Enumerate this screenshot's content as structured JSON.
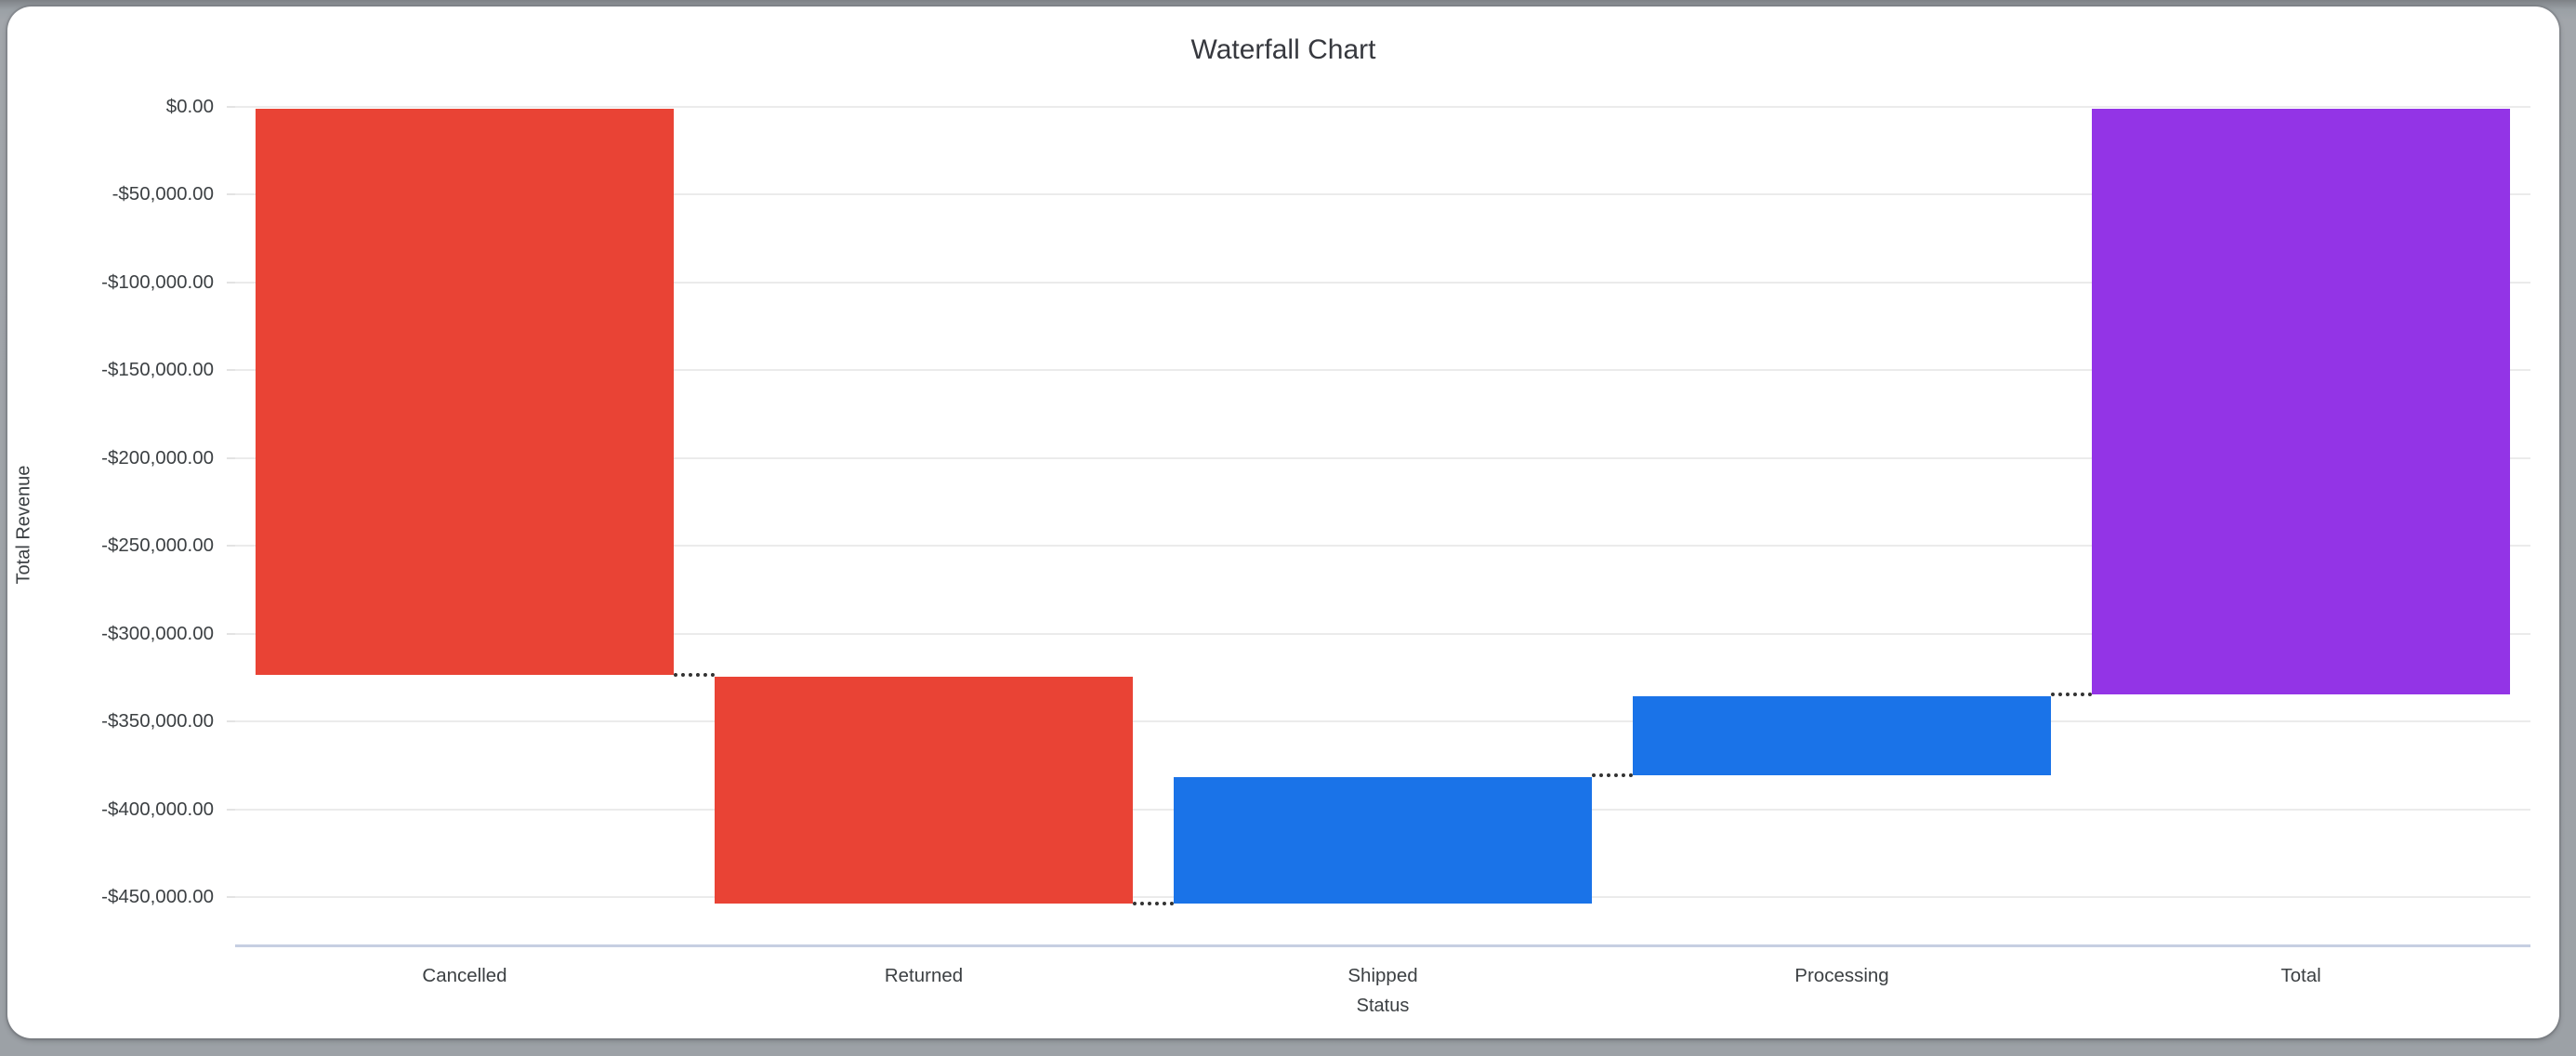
{
  "window": {
    "frame_color": "#9ca1a6",
    "card_background": "#ffffff"
  },
  "chart_data": {
    "type": "bar",
    "subtype": "waterfall",
    "title": "Waterfall Chart",
    "xlabel": "Status",
    "ylabel": "Total Revenue",
    "categories": [
      "Cancelled",
      "Returned",
      "Shipped",
      "Processing",
      "Total"
    ],
    "bars": [
      {
        "label": "Cancelled",
        "kind": "decrease",
        "start": 0,
        "end": -323400,
        "delta": -323400
      },
      {
        "label": "Returned",
        "kind": "decrease",
        "start": -323400,
        "end": -453600,
        "delta": -130200
      },
      {
        "label": "Shipped",
        "kind": "increase",
        "start": -453600,
        "end": -380850,
        "delta": 72750
      },
      {
        "label": "Processing",
        "kind": "increase",
        "start": -380850,
        "end": -334500,
        "delta": 46350
      },
      {
        "label": "Total",
        "kind": "total",
        "start": 0,
        "end": -334500,
        "delta": -334500
      }
    ],
    "connectors": "dotted lines linking each bar end to the next bar",
    "ylim": [
      -477000,
      0
    ],
    "yticks": [
      {
        "value": 0,
        "label": "$0.00"
      },
      {
        "value": -50000,
        "label": "-$50,000.00"
      },
      {
        "value": -100000,
        "label": "-$100,000.00"
      },
      {
        "value": -150000,
        "label": "-$150,000.00"
      },
      {
        "value": -200000,
        "label": "-$200,000.00"
      },
      {
        "value": -250000,
        "label": "-$250,000.00"
      },
      {
        "value": -300000,
        "label": "-$300,000.00"
      },
      {
        "value": -350000,
        "label": "-$350,000.00"
      },
      {
        "value": -400000,
        "label": "-$400,000.00"
      },
      {
        "value": -450000,
        "label": "-$450,000.00"
      }
    ],
    "palette": {
      "decrease": "#e94335",
      "increase": "#1a73e8",
      "total": "#9334e6",
      "gridline": "#ebebeb",
      "axis_border": "#c6cfe2",
      "connector": "#333333"
    },
    "grid": true,
    "legend": false
  }
}
